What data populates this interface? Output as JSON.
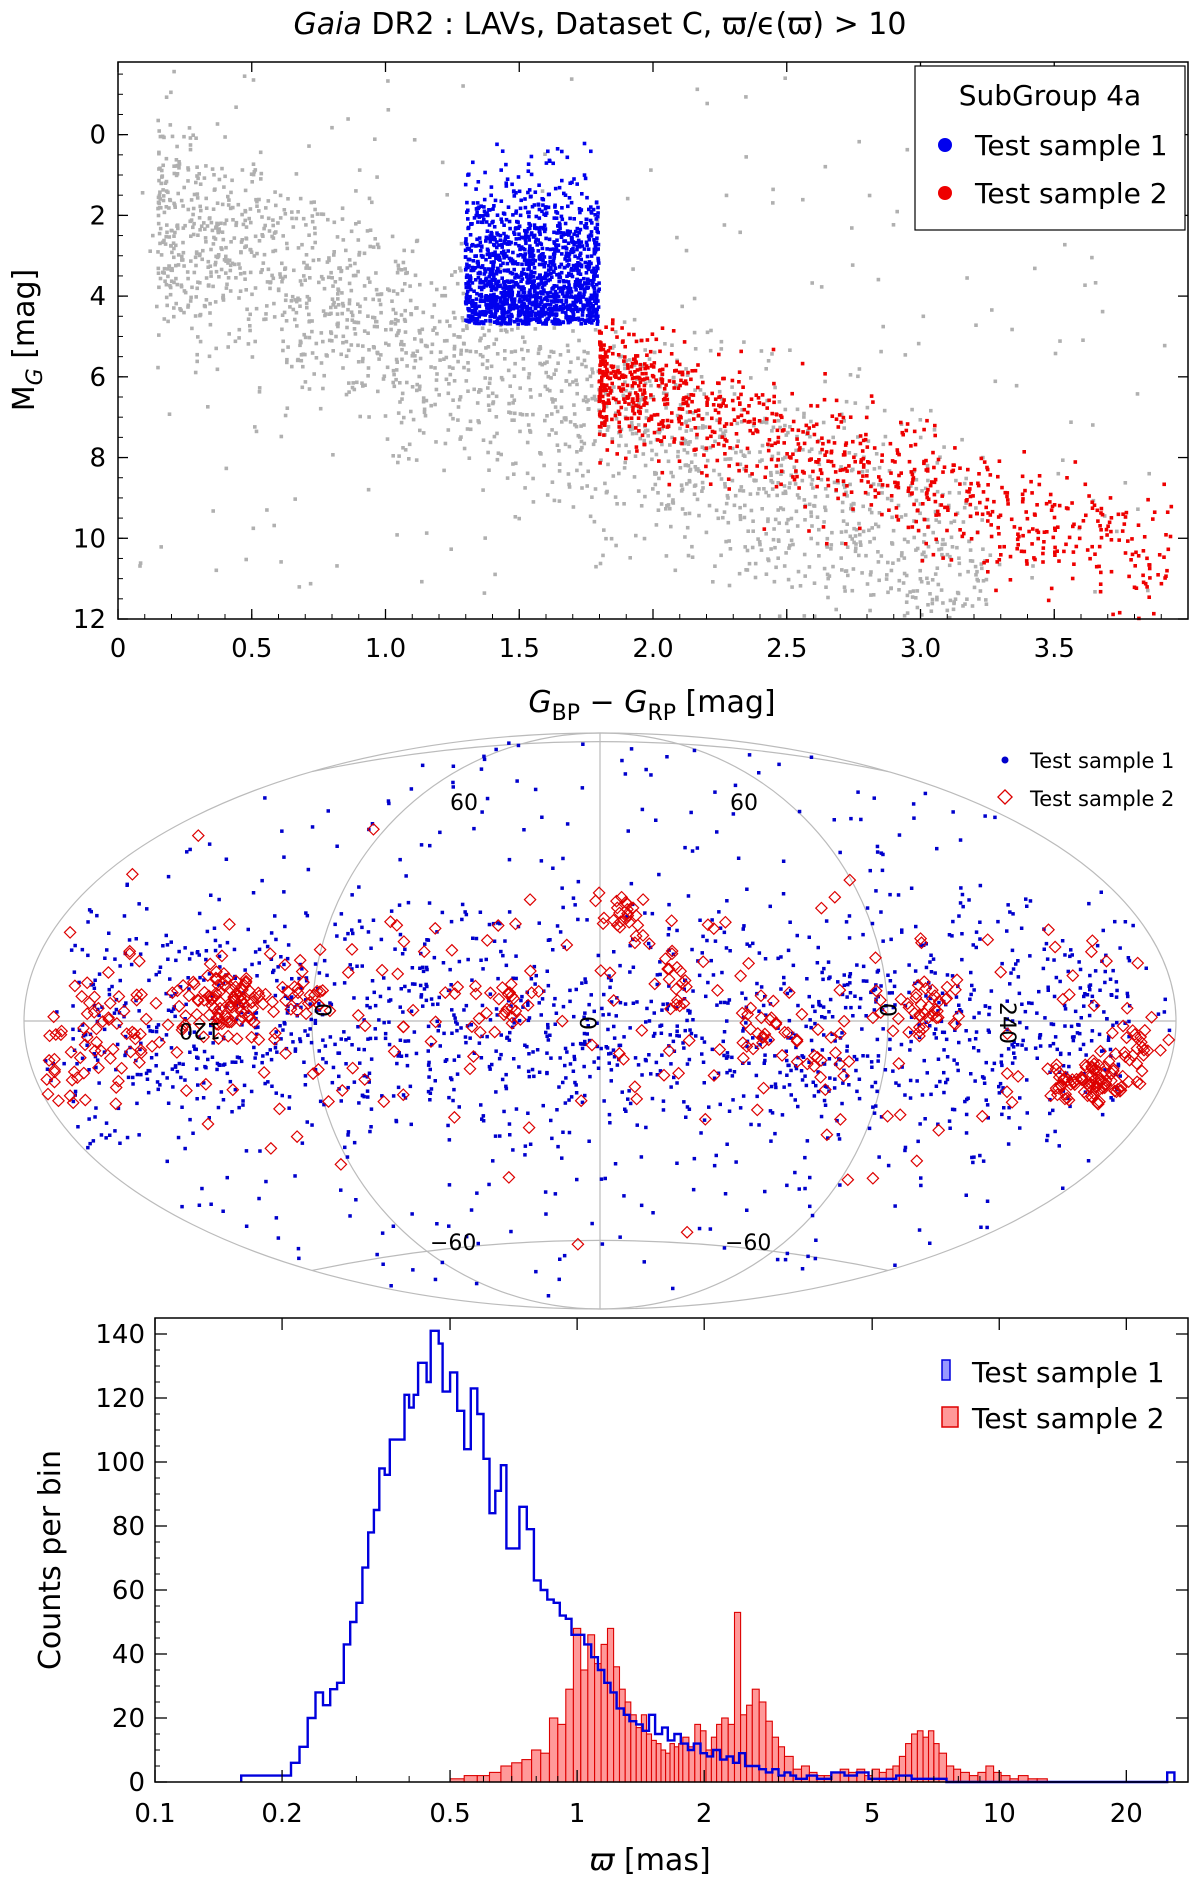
{
  "chart_data": [
    {
      "type": "scatter",
      "title_italic": "Gaia",
      "title_rest": " DR2 :  LAVs, Dataset C, ϖ/ϵ(ϖ) > 10",
      "xlabel": "G_BP − G_RP  [mag]",
      "xlabel_parts": [
        "G",
        "BP",
        " − ",
        "G",
        "RP",
        "  [mag]"
      ],
      "ylabel": "M_G [mag]",
      "ylabel_parts": [
        "M",
        "G",
        " [mag]"
      ],
      "xlim": [
        0,
        4.0
      ],
      "ylim": [
        12,
        -1.8
      ],
      "xticks": [
        0,
        0.5,
        1.0,
        1.5,
        2.0,
        2.5,
        3.0,
        3.5
      ],
      "xtick_labels": [
        "0",
        "0.5",
        "1.0",
        "1.5",
        "2.0",
        "2.5",
        "3.0",
        "3.5"
      ],
      "yticks": [
        0,
        2,
        4,
        6,
        8,
        10,
        12
      ],
      "ytick_labels": [
        "0",
        "2",
        "4",
        "6",
        "8",
        "10",
        "12"
      ],
      "legend": {
        "title": "SubGroup 4a",
        "position": "top-right",
        "entries": [
          {
            "label": "Test sample 1",
            "color": "#0000ee"
          },
          {
            "label": "Test sample 2",
            "color": "#ee0000"
          }
        ]
      },
      "series": [
        {
          "name": "All LAVs",
          "color": "#b0b0b0",
          "note": "background distribution; diagonal band from (0.2, 1) to (3.5, 10)"
        },
        {
          "name": "Test sample 1",
          "color": "#0000ee",
          "region": {
            "x": [
              1.3,
              1.8
            ],
            "y": [
              0.0,
              4.7
            ]
          }
        },
        {
          "name": "Test sample 2",
          "color": "#ee0000",
          "region": "along band, x from 1.8 to 4.0, M_G from 4.5 to 11.8"
        }
      ]
    },
    {
      "type": "scatter",
      "projection": "Aitoff (galactic)",
      "grid_labels": [
        "60",
        "60",
        "120",
        "0",
        "0",
        "0",
        "240",
        "−60",
        "−60"
      ],
      "legend": {
        "position": "top-right",
        "entries": [
          {
            "label": "Test sample 1",
            "color": "#0000cc",
            "marker": "dot"
          },
          {
            "label": "Test sample 2",
            "color": "#dd0000",
            "marker": "open-diamond"
          }
        ]
      }
    },
    {
      "type": "histogram",
      "xlabel": "ϖ  [mas]",
      "xlabel_symbol": "ϖ",
      "xlabel_unit": "  [mas]",
      "ylabel": "Counts per bin",
      "xscale": "log",
      "xlim": [
        0.1,
        28
      ],
      "ylim": [
        0,
        145
      ],
      "xticks": [
        0.1,
        0.2,
        0.5,
        1,
        2,
        5,
        10,
        20
      ],
      "xtick_labels": [
        "0.1",
        "0.2",
        "0.5",
        "1",
        "2",
        "5",
        "10",
        "20"
      ],
      "yticks": [
        0,
        20,
        40,
        60,
        80,
        100,
        120,
        140
      ],
      "ytick_labels": [
        "0",
        "20",
        "40",
        "60",
        "80",
        "100",
        "120",
        "140"
      ],
      "legend": {
        "position": "top-right",
        "entries": [
          {
            "label": "Test sample 1",
            "color": "#0000cc"
          },
          {
            "label": "Test sample 2",
            "color": "#dd0000"
          }
        ]
      },
      "series": [
        {
          "name": "Test sample 1",
          "style": "step",
          "color": "#0000dd",
          "bins": [
            [
              0.16,
              2
            ],
            [
              0.2,
              2
            ],
            [
              0.21,
              6
            ],
            [
              0.22,
              11
            ],
            [
              0.23,
              20
            ],
            [
              0.24,
              28
            ],
            [
              0.25,
              24
            ],
            [
              0.26,
              29
            ],
            [
              0.27,
              31
            ],
            [
              0.28,
              43
            ],
            [
              0.29,
              50
            ],
            [
              0.3,
              56
            ],
            [
              0.31,
              67
            ],
            [
              0.32,
              78
            ],
            [
              0.33,
              85
            ],
            [
              0.34,
              98
            ],
            [
              0.35,
              96
            ],
            [
              0.36,
              107
            ],
            [
              0.38,
              107
            ],
            [
              0.39,
              121
            ],
            [
              0.4,
              117
            ],
            [
              0.41,
              121
            ],
            [
              0.42,
              131
            ],
            [
              0.44,
              125
            ],
            [
              0.45,
              141
            ],
            [
              0.47,
              137
            ],
            [
              0.48,
              122
            ],
            [
              0.5,
              128
            ],
            [
              0.52,
              116
            ],
            [
              0.54,
              104
            ],
            [
              0.56,
              123
            ],
            [
              0.58,
              115
            ],
            [
              0.6,
              101
            ],
            [
              0.62,
              84
            ],
            [
              0.64,
              91
            ],
            [
              0.66,
              99
            ],
            [
              0.68,
              73
            ],
            [
              0.71,
              73
            ],
            [
              0.73,
              86
            ],
            [
              0.76,
              79
            ],
            [
              0.79,
              63
            ],
            [
              0.82,
              60
            ],
            [
              0.85,
              57
            ],
            [
              0.88,
              56
            ],
            [
              0.91,
              52
            ],
            [
              0.94,
              51
            ],
            [
              0.97,
              46
            ],
            [
              1.0,
              46
            ],
            [
              1.04,
              43
            ],
            [
              1.08,
              39
            ],
            [
              1.12,
              35
            ],
            [
              1.16,
              31
            ],
            [
              1.2,
              28
            ],
            [
              1.24,
              23
            ],
            [
              1.29,
              21
            ],
            [
              1.33,
              19
            ],
            [
              1.38,
              18
            ],
            [
              1.43,
              16
            ],
            [
              1.48,
              21
            ],
            [
              1.53,
              15
            ],
            [
              1.59,
              17
            ],
            [
              1.64,
              13
            ],
            [
              1.7,
              15
            ],
            [
              1.76,
              12
            ],
            [
              1.83,
              10
            ],
            [
              1.89,
              12
            ],
            [
              1.96,
              9
            ],
            [
              2.03,
              8
            ],
            [
              2.1,
              10
            ],
            [
              2.18,
              7
            ],
            [
              2.26,
              8
            ],
            [
              2.34,
              6
            ],
            [
              2.42,
              9
            ],
            [
              2.5,
              5
            ],
            [
              2.6,
              5
            ],
            [
              2.7,
              4
            ],
            [
              2.8,
              3
            ],
            [
              2.9,
              4
            ],
            [
              3.0,
              2
            ],
            [
              3.1,
              3
            ],
            [
              3.2,
              2
            ],
            [
              3.3,
              1
            ],
            [
              3.5,
              2
            ],
            [
              3.7,
              1
            ],
            [
              4.0,
              3
            ],
            [
              4.3,
              2
            ],
            [
              4.6,
              3
            ],
            [
              4.9,
              1
            ],
            [
              5.3,
              1
            ],
            [
              5.7,
              2
            ],
            [
              6.2,
              1
            ],
            [
              6.8,
              1
            ],
            [
              7.5,
              0
            ],
            [
              8.5,
              0
            ],
            [
              10.0,
              0
            ],
            [
              15.0,
              0
            ],
            [
              25.0,
              3
            ],
            [
              26.0,
              0
            ]
          ]
        },
        {
          "name": "Test sample 2",
          "style": "filled-bars",
          "color": "#dd0000",
          "fill": "#ff9999",
          "bins": [
            [
              0.5,
              1
            ],
            [
              0.54,
              2
            ],
            [
              0.58,
              2
            ],
            [
              0.62,
              3
            ],
            [
              0.66,
              5
            ],
            [
              0.7,
              6
            ],
            [
              0.74,
              7
            ],
            [
              0.78,
              10
            ],
            [
              0.82,
              9
            ],
            [
              0.86,
              20
            ],
            [
              0.9,
              18
            ],
            [
              0.94,
              29
            ],
            [
              0.98,
              48
            ],
            [
              1.02,
              35
            ],
            [
              1.06,
              46
            ],
            [
              1.1,
              37
            ],
            [
              1.14,
              43
            ],
            [
              1.18,
              48
            ],
            [
              1.22,
              36
            ],
            [
              1.26,
              29
            ],
            [
              1.3,
              25
            ],
            [
              1.34,
              21
            ],
            [
              1.38,
              17
            ],
            [
              1.42,
              21
            ],
            [
              1.46,
              15
            ],
            [
              1.5,
              13
            ],
            [
              1.54,
              12
            ],
            [
              1.58,
              10
            ],
            [
              1.62,
              9
            ],
            [
              1.66,
              12
            ],
            [
              1.7,
              11
            ],
            [
              1.74,
              12
            ],
            [
              1.78,
              14
            ],
            [
              1.84,
              11
            ],
            [
              1.9,
              18
            ],
            [
              1.96,
              16
            ],
            [
              2.02,
              10
            ],
            [
              2.08,
              14
            ],
            [
              2.14,
              18
            ],
            [
              2.2,
              20
            ],
            [
              2.28,
              18
            ],
            [
              2.36,
              53
            ],
            [
              2.44,
              21
            ],
            [
              2.52,
              24
            ],
            [
              2.6,
              29
            ],
            [
              2.7,
              25
            ],
            [
              2.8,
              19
            ],
            [
              2.9,
              14
            ],
            [
              3.0,
              11
            ],
            [
              3.1,
              8
            ],
            [
              3.25,
              4
            ],
            [
              3.4,
              5
            ],
            [
              3.55,
              3
            ],
            [
              3.7,
              2
            ],
            [
              3.85,
              2
            ],
            [
              4.0,
              3
            ],
            [
              4.2,
              4
            ],
            [
              4.4,
              3
            ],
            [
              4.6,
              4
            ],
            [
              4.8,
              2
            ],
            [
              5.0,
              4
            ],
            [
              5.2,
              3
            ],
            [
              5.4,
              4
            ],
            [
              5.6,
              5
            ],
            [
              5.8,
              8
            ],
            [
              6.0,
              12
            ],
            [
              6.2,
              15
            ],
            [
              6.4,
              16
            ],
            [
              6.6,
              14
            ],
            [
              6.8,
              16
            ],
            [
              7.0,
              12
            ],
            [
              7.2,
              9
            ],
            [
              7.5,
              5
            ],
            [
              7.8,
              4
            ],
            [
              8.1,
              3
            ],
            [
              8.5,
              2
            ],
            [
              8.9,
              3
            ],
            [
              9.3,
              5
            ],
            [
              9.7,
              3
            ],
            [
              10.1,
              2
            ],
            [
              10.6,
              1
            ],
            [
              11.1,
              2
            ],
            [
              11.7,
              1
            ],
            [
              12.3,
              1
            ],
            [
              13.0,
              0
            ]
          ]
        }
      ]
    }
  ]
}
